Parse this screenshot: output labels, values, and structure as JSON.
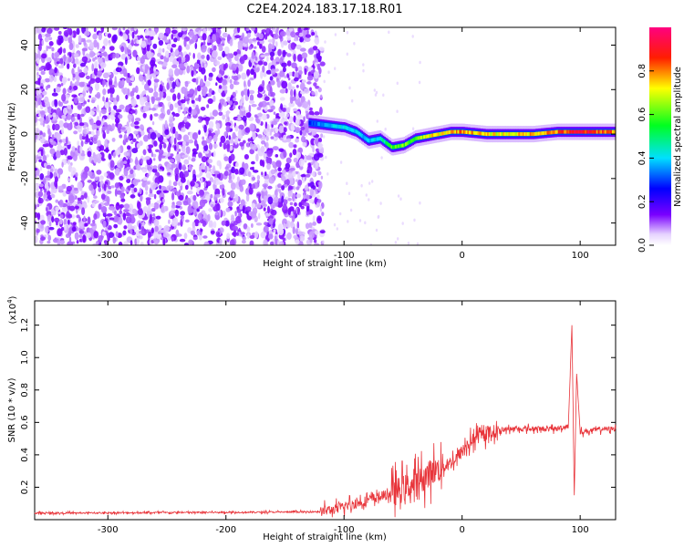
{
  "title": "C2E4.2024.183.17.18.R01",
  "chart_data": [
    {
      "type": "heatmap",
      "title": "C2E4.2024.183.17.18.R01",
      "xlabel": "Height of straight line (km)",
      "ylabel": "Frequency (Hz)",
      "xlim": [
        -362,
        130
      ],
      "ylim": [
        -50,
        48
      ],
      "xticks": [
        -300,
        -200,
        -100,
        0,
        100
      ],
      "yticks": [
        -40,
        -20,
        0,
        20,
        40
      ],
      "x_tick_labels": [
        "-300",
        "-200",
        "-100",
        "0",
        "100"
      ],
      "y_tick_labels": [
        "-40",
        "-20",
        "0",
        "20",
        "40"
      ],
      "colorbar": {
        "label": "Normalized spectral amplitude",
        "range": [
          0,
          1
        ],
        "ticks": [
          0.0,
          0.2,
          0.4,
          0.6,
          0.8
        ],
        "tick_labels": [
          "0.0",
          "0.2",
          "0.4",
          "0.6",
          "0.8"
        ],
        "colormap": "rainbow (white-violet-blue-cyan-green-yellow-red-magenta)"
      },
      "noise_region": {
        "x_range": [
          -362,
          -118
        ],
        "description": "broadband random speckle"
      },
      "ridge": {
        "x": [
          -130,
          -115,
          -100,
          -90,
          -80,
          -70,
          -60,
          -50,
          -40,
          -30,
          -20,
          -10,
          0,
          20,
          40,
          60,
          80,
          90,
          100,
          110,
          130
        ],
        "y": [
          5,
          4,
          3,
          1,
          -3,
          -2,
          -6,
          -5,
          -2,
          -1,
          0,
          1,
          1,
          0,
          0,
          0,
          1,
          1,
          1,
          1,
          1
        ],
        "amplitude": [
          0.3,
          0.4,
          0.45,
          0.4,
          0.4,
          0.45,
          0.6,
          0.65,
          0.6,
          0.75,
          0.75,
          0.8,
          0.85,
          0.75,
          0.75,
          0.8,
          0.85,
          0.9,
          0.95,
          0.9,
          0.85
        ]
      }
    },
    {
      "type": "line",
      "xlabel": "Height of straight line (km)",
      "ylabel": "SNR (10 * v/v)",
      "multiplier_label": "(x10",
      "multiplier_exp": "4",
      "multiplier_close": ")",
      "xlim": [
        -362,
        130
      ],
      "ylim": [
        0,
        13500
      ],
      "xticks": [
        -300,
        -200,
        -100,
        0,
        100
      ],
      "x_tick_labels": [
        "-300",
        "-200",
        "-100",
        "0",
        "100"
      ],
      "yticks": [
        2000,
        4000,
        6000,
        8000,
        10000,
        12000
      ],
      "y_tick_labels": [
        "0.2",
        "0.4",
        "0.6",
        "0.8",
        "1.0",
        "1.2"
      ],
      "line_color": "#e8343a",
      "series": [
        {
          "x": [
            -362,
            -300,
            -200,
            -130,
            -120,
            -110,
            -100,
            -90,
            -80,
            -70,
            -60,
            -50,
            -40,
            -30,
            -25,
            -20,
            -15,
            -10,
            -5,
            0,
            5,
            10,
            20,
            30,
            40,
            60,
            80,
            90,
            93,
            95,
            97,
            100,
            110,
            120,
            130
          ],
          "values": [
            400,
            420,
            450,
            480,
            500,
            600,
            800,
            1000,
            1200,
            1400,
            1600,
            1900,
            2200,
            2700,
            3000,
            3100,
            3300,
            3500,
            3800,
            4200,
            4600,
            5000,
            5300,
            5500,
            5600,
            5600,
            5600,
            5800,
            12000,
            1500,
            9000,
            5400,
            5500,
            5600,
            5600
          ]
        }
      ]
    }
  ]
}
